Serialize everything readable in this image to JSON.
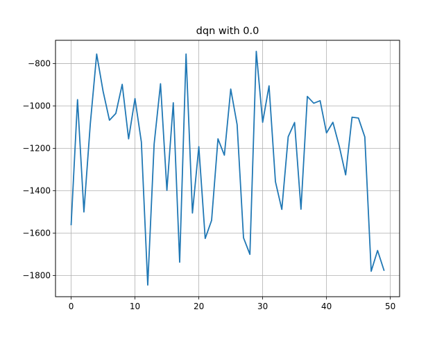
{
  "chart_data": {
    "type": "line",
    "title": "dqn with 0.0",
    "xlabel": "",
    "ylabel": "",
    "grid": true,
    "xlim": [
      -2.45,
      51.45
    ],
    "ylim": [
      -1900,
      -690
    ],
    "xticks": [
      0,
      10,
      20,
      30,
      40,
      50
    ],
    "yticks": [
      -1800,
      -1600,
      -1400,
      -1200,
      -1000,
      -800
    ],
    "xtick_labels": [
      "0",
      "10",
      "20",
      "30",
      "40",
      "50"
    ],
    "ytick_labels": [
      "−1800",
      "−1600",
      "−1400",
      "−1200",
      "−1000",
      "−800"
    ],
    "series": [
      {
        "color": "#1f77b4",
        "x": [
          0,
          1,
          2,
          3,
          4,
          5,
          6,
          7,
          8,
          9,
          10,
          11,
          12,
          13,
          14,
          15,
          16,
          17,
          18,
          19,
          20,
          21,
          22,
          23,
          24,
          25,
          26,
          27,
          28,
          29,
          30,
          31,
          32,
          33,
          34,
          35,
          36,
          37,
          38,
          39,
          40,
          41,
          42,
          43,
          44,
          45,
          46,
          47,
          48,
          49
        ],
        "y": [
          -1560,
          -970,
          -1500,
          -1085,
          -755,
          -930,
          -1067,
          -1035,
          -898,
          -1155,
          -965,
          -1170,
          -1845,
          -1180,
          -895,
          -1398,
          -985,
          -1737,
          -755,
          -1505,
          -1192,
          -1625,
          -1540,
          -1155,
          -1232,
          -920,
          -1088,
          -1622,
          -1700,
          -742,
          -1077,
          -905,
          -1357,
          -1488,
          -1145,
          -1078,
          -1487,
          -955,
          -987,
          -975,
          -1127,
          -1077,
          -1190,
          -1325,
          -1053,
          -1057,
          -1146,
          -1780,
          -1682,
          -1775
        ]
      }
    ]
  }
}
